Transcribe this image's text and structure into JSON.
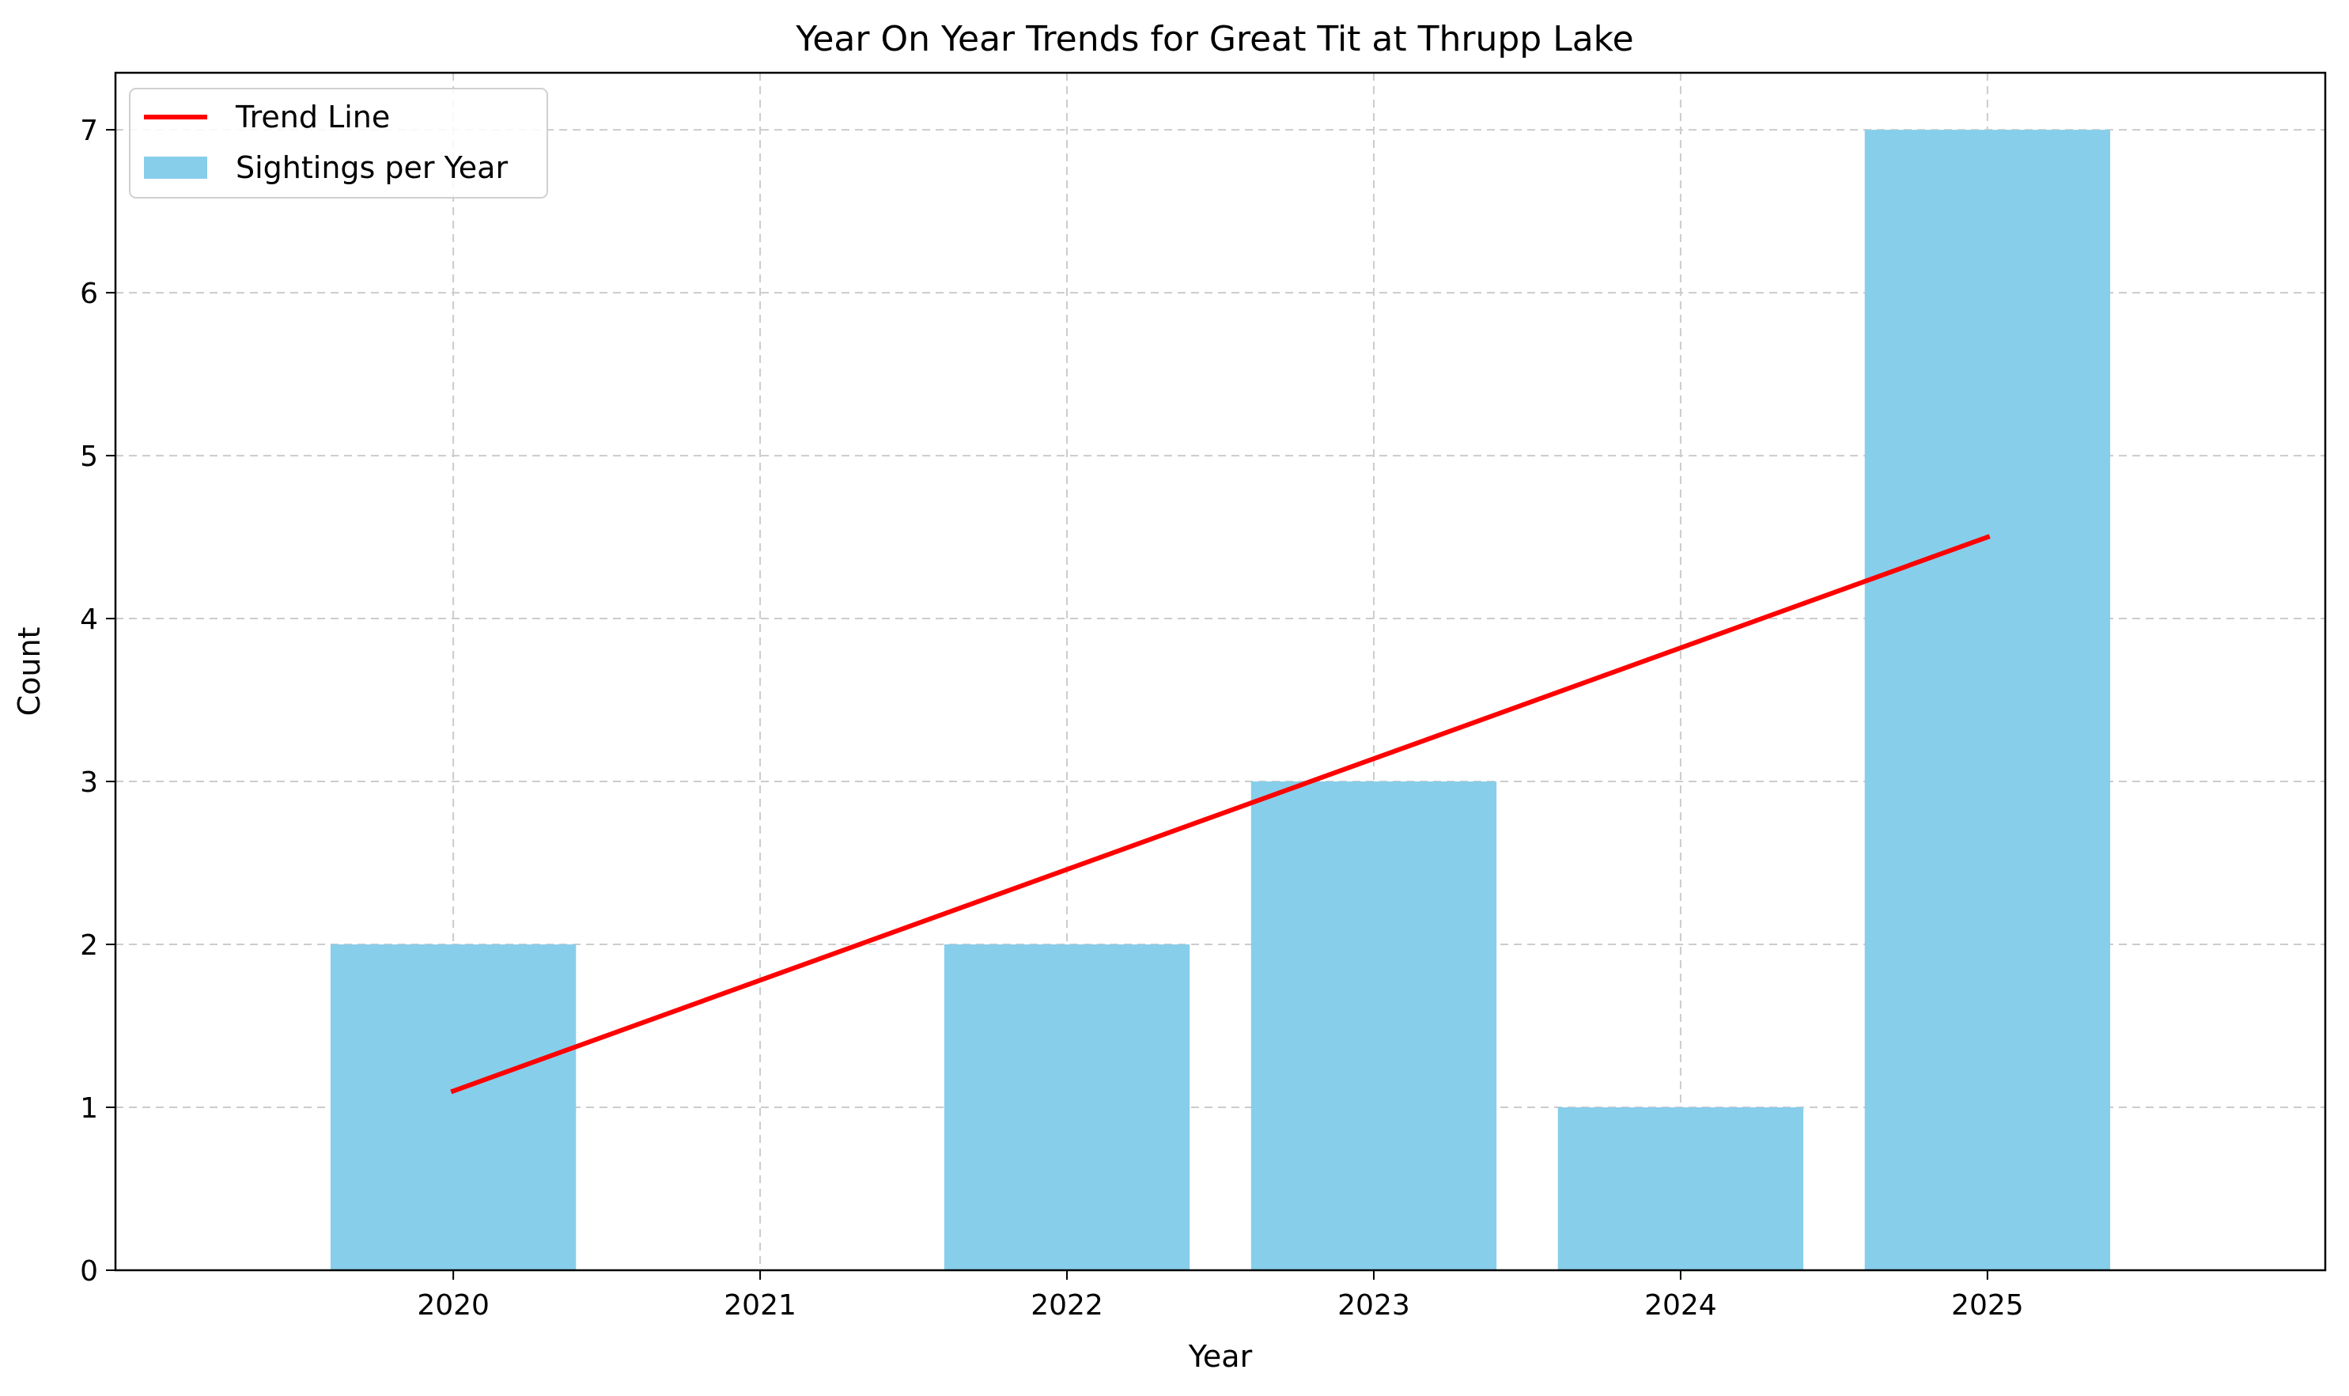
{
  "chart_data": {
    "type": "bar",
    "title": "Year On Year Trends for Great Tit at Thrupp Lake",
    "xlabel": "Year",
    "ylabel": "Count",
    "categories": [
      "2020",
      "2021",
      "2022",
      "2023",
      "2024",
      "2025"
    ],
    "series": [
      {
        "name": "Sightings per Year",
        "type": "bar",
        "color": "#87CEEB",
        "values": [
          2,
          0,
          2,
          3,
          1,
          7
        ]
      },
      {
        "name": "Trend Line",
        "type": "line",
        "color": "#FF0000",
        "x": [
          "2020",
          "2025"
        ],
        "values": [
          1.1,
          4.5
        ]
      }
    ],
    "ylim": [
      0,
      7.35
    ],
    "yticks": [
      0,
      1,
      2,
      3,
      4,
      5,
      6,
      7
    ],
    "grid": true,
    "legend": {
      "position": "top-left",
      "entries": [
        "Trend Line",
        "Sightings per Year"
      ]
    }
  }
}
